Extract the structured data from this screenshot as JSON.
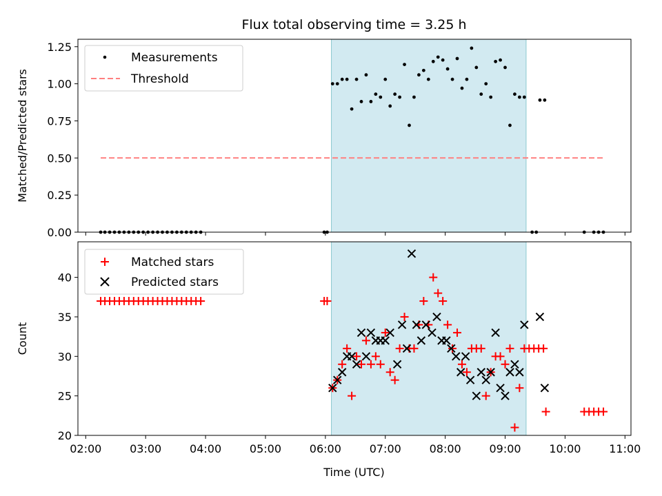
{
  "title": "Flux total observing time = 3.25 h",
  "xlabel": "Time (UTC)",
  "x_ticks": [
    "02:00",
    "03:00",
    "04:00",
    "05:00",
    "06:00",
    "07:00",
    "08:00",
    "09:00",
    "10:00",
    "11:00"
  ],
  "colors": {
    "measure": "#000000",
    "threshold": "#ff7f7f",
    "band": "#add8e6",
    "matched": "#ff0000",
    "predicted": "#000000"
  },
  "chart_data": [
    {
      "type": "scatter",
      "panel": "top",
      "ylabel": "Matched/Predicted stars",
      "ylim": [
        0,
        1.3
      ],
      "xlim_hours": [
        1.87,
        11.1
      ],
      "y_ticks": [
        "0.00",
        "0.25",
        "0.50",
        "0.75",
        "1.00",
        "1.25"
      ],
      "observing_window_hours": [
        6.1,
        9.35
      ],
      "legend": [
        "Measurements",
        "Threshold"
      ],
      "legend_position": "top-left",
      "threshold": {
        "value": 0.5,
        "x_range_hours": [
          2.25,
          10.65
        ]
      },
      "series": [
        {
          "name": "Measurements",
          "x": [
            2.25,
            2.32,
            2.4,
            2.48,
            2.56,
            2.64,
            2.72,
            2.8,
            2.88,
            2.96,
            3.04,
            3.12,
            3.2,
            3.28,
            3.36,
            3.44,
            3.52,
            3.6,
            3.68,
            3.76,
            3.84,
            3.92,
            5.98,
            6.03,
            6.12,
            6.2,
            6.28,
            6.36,
            6.44,
            6.52,
            6.6,
            6.68,
            6.76,
            6.84,
            6.92,
            7.0,
            7.08,
            7.16,
            7.24,
            7.32,
            7.4,
            7.48,
            7.56,
            7.64,
            7.72,
            7.8,
            7.88,
            7.96,
            8.04,
            8.12,
            8.2,
            8.28,
            8.36,
            8.44,
            8.52,
            8.6,
            8.68,
            8.76,
            8.84,
            8.92,
            9.0,
            9.08,
            9.16,
            9.24,
            9.32,
            9.45,
            9.52,
            9.58,
            9.66,
            10.32,
            10.48,
            10.56,
            10.64
          ],
          "y": [
            0,
            0,
            0,
            0,
            0,
            0,
            0,
            0,
            0,
            0,
            0,
            0,
            0,
            0,
            0,
            0,
            0,
            0,
            0,
            0,
            0,
            0,
            0,
            0,
            1.0,
            1.0,
            1.03,
            1.03,
            0.83,
            1.03,
            0.88,
            1.06,
            0.88,
            0.93,
            0.91,
            1.03,
            0.85,
            0.93,
            0.91,
            1.13,
            0.72,
            0.91,
            1.06,
            1.09,
            1.03,
            1.15,
            1.18,
            1.16,
            1.1,
            1.03,
            1.17,
            0.97,
            1.03,
            1.24,
            1.11,
            0.93,
            1.0,
            0.91,
            1.15,
            1.16,
            1.11,
            0.72,
            0.93,
            0.91,
            0.91,
            0,
            0,
            0.89,
            0.89,
            0,
            0,
            0,
            0
          ]
        }
      ]
    },
    {
      "type": "scatter",
      "panel": "bottom",
      "ylabel": "Count",
      "ylim": [
        20,
        44.5
      ],
      "xlim_hours": [
        1.87,
        11.1
      ],
      "y_ticks": [
        "20",
        "25",
        "30",
        "35",
        "40"
      ],
      "observing_window_hours": [
        6.1,
        9.35
      ],
      "legend": [
        "Matched stars",
        "Predicted stars"
      ],
      "legend_position": "top-left",
      "series": [
        {
          "name": "Matched stars",
          "marker": "plus",
          "x": [
            2.25,
            2.32,
            2.4,
            2.48,
            2.56,
            2.64,
            2.72,
            2.8,
            2.88,
            2.96,
            3.04,
            3.12,
            3.2,
            3.28,
            3.36,
            3.44,
            3.52,
            3.6,
            3.68,
            3.76,
            3.84,
            3.92,
            5.98,
            6.03,
            6.12,
            6.2,
            6.28,
            6.36,
            6.44,
            6.52,
            6.6,
            6.68,
            6.76,
            6.84,
            6.92,
            7.0,
            7.08,
            7.16,
            7.24,
            7.32,
            7.4,
            7.48,
            7.56,
            7.64,
            7.72,
            7.8,
            7.88,
            7.96,
            8.04,
            8.12,
            8.2,
            8.28,
            8.36,
            8.44,
            8.52,
            8.6,
            8.68,
            8.76,
            8.84,
            8.92,
            9.0,
            9.08,
            9.16,
            9.24,
            9.32,
            9.4,
            9.48,
            9.56,
            9.64,
            9.68,
            10.32,
            10.4,
            10.48,
            10.56,
            10.64
          ],
          "y": [
            37,
            37,
            37,
            37,
            37,
            37,
            37,
            37,
            37,
            37,
            37,
            37,
            37,
            37,
            37,
            37,
            37,
            37,
            37,
            37,
            37,
            37,
            37,
            37,
            26,
            27,
            29,
            31,
            25,
            30,
            29,
            32,
            29,
            30,
            29,
            33,
            28,
            27,
            31,
            35,
            31,
            31,
            34,
            37,
            34,
            40,
            38,
            37,
            34,
            31,
            33,
            29,
            28,
            31,
            31,
            31,
            25,
            28,
            30,
            30,
            29,
            31,
            21,
            26,
            31,
            31,
            31,
            31,
            31,
            23,
            23,
            23,
            23,
            23,
            23
          ]
        },
        {
          "name": "Predicted stars",
          "marker": "x",
          "x": [
            6.12,
            6.2,
            6.28,
            6.36,
            6.44,
            6.52,
            6.6,
            6.68,
            6.76,
            6.84,
            6.92,
            7.0,
            7.08,
            7.2,
            7.28,
            7.36,
            7.44,
            7.52,
            7.6,
            7.68,
            7.78,
            7.86,
            7.94,
            8.02,
            8.1,
            8.18,
            8.26,
            8.34,
            8.42,
            8.52,
            8.6,
            8.68,
            8.76,
            8.84,
            8.92,
            9.0,
            9.08,
            9.16,
            9.24,
            9.32,
            9.58,
            9.66
          ],
          "y": [
            26,
            27,
            28,
            30,
            30,
            29,
            33,
            30,
            33,
            32,
            32,
            32,
            33,
            29,
            34,
            31,
            43,
            34,
            32,
            34,
            33,
            35,
            32,
            32,
            31,
            30,
            28,
            30,
            27,
            25,
            28,
            27,
            28,
            33,
            26,
            25,
            28,
            29,
            28,
            34,
            35,
            26
          ]
        }
      ]
    }
  ]
}
